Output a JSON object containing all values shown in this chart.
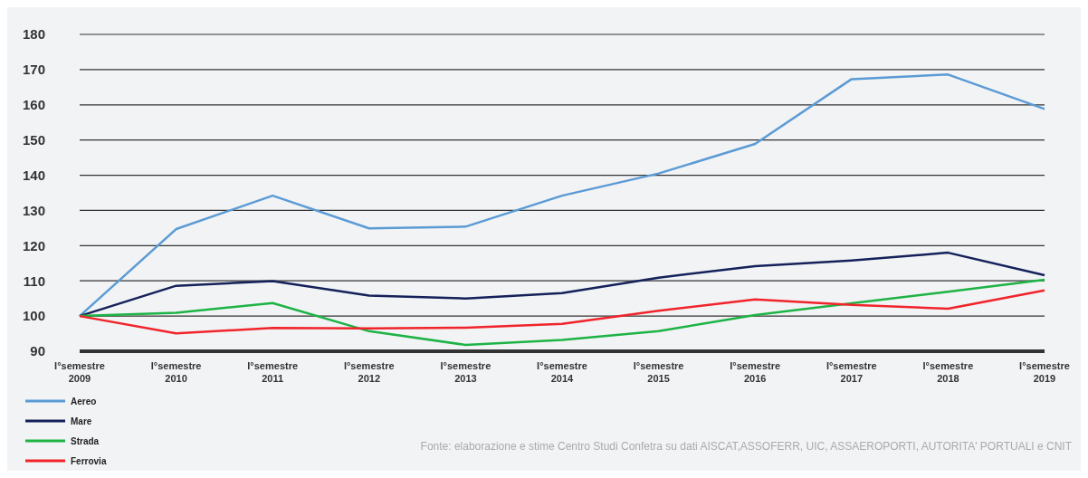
{
  "chart_data": {
    "type": "line",
    "categories": [
      "I°semestre 2009",
      "I°semestre 2010",
      "I°semestre 2011",
      "I°semestre 2012",
      "I°semestre 2013",
      "I°semestre 2014",
      "I°semestre 2015",
      "I°semestre 2016",
      "I°semestre 2017",
      "I°semestre 2018",
      "I°semestre 2019"
    ],
    "series": [
      {
        "name": "Aereo",
        "color": "#5b9bd5",
        "values": [
          100,
          124.7,
          134.2,
          124.9,
          125.4,
          134.2,
          140.5,
          148.9,
          167.3,
          168.6,
          158.8
        ]
      },
      {
        "name": "Mare",
        "color": "#14215a",
        "values": [
          100,
          108.6,
          109.9,
          105.8,
          105,
          106.5,
          110.9,
          114.2,
          115.8,
          118,
          111.6
        ]
      },
      {
        "name": "Strada",
        "color": "#1db345",
        "values": [
          100,
          100.9,
          103.7,
          95.7,
          91.8,
          93.2,
          95.7,
          100.3,
          103.6,
          106.9,
          110.3
        ]
      },
      {
        "name": "Ferrovia",
        "color": "#f0242a",
        "values": [
          100,
          95.1,
          96.6,
          96.5,
          96.7,
          97.8,
          101.5,
          104.7,
          103.2,
          102.1,
          107.3
        ]
      }
    ],
    "ylim": [
      90,
      180
    ],
    "yticks": [
      90,
      100,
      110,
      120,
      130,
      140,
      150,
      160,
      170,
      180
    ],
    "grid": "y",
    "legend": "bottom left",
    "marker": "none",
    "line_style": "solid",
    "annotations": [
      "Fonte: elaborazione e stime Centro Studi Confetra su dati AISCAT,ASSOFERR, UIC, ASSAEROPORTI, AUTORITA' PORTUALI e CNIT"
    ]
  }
}
